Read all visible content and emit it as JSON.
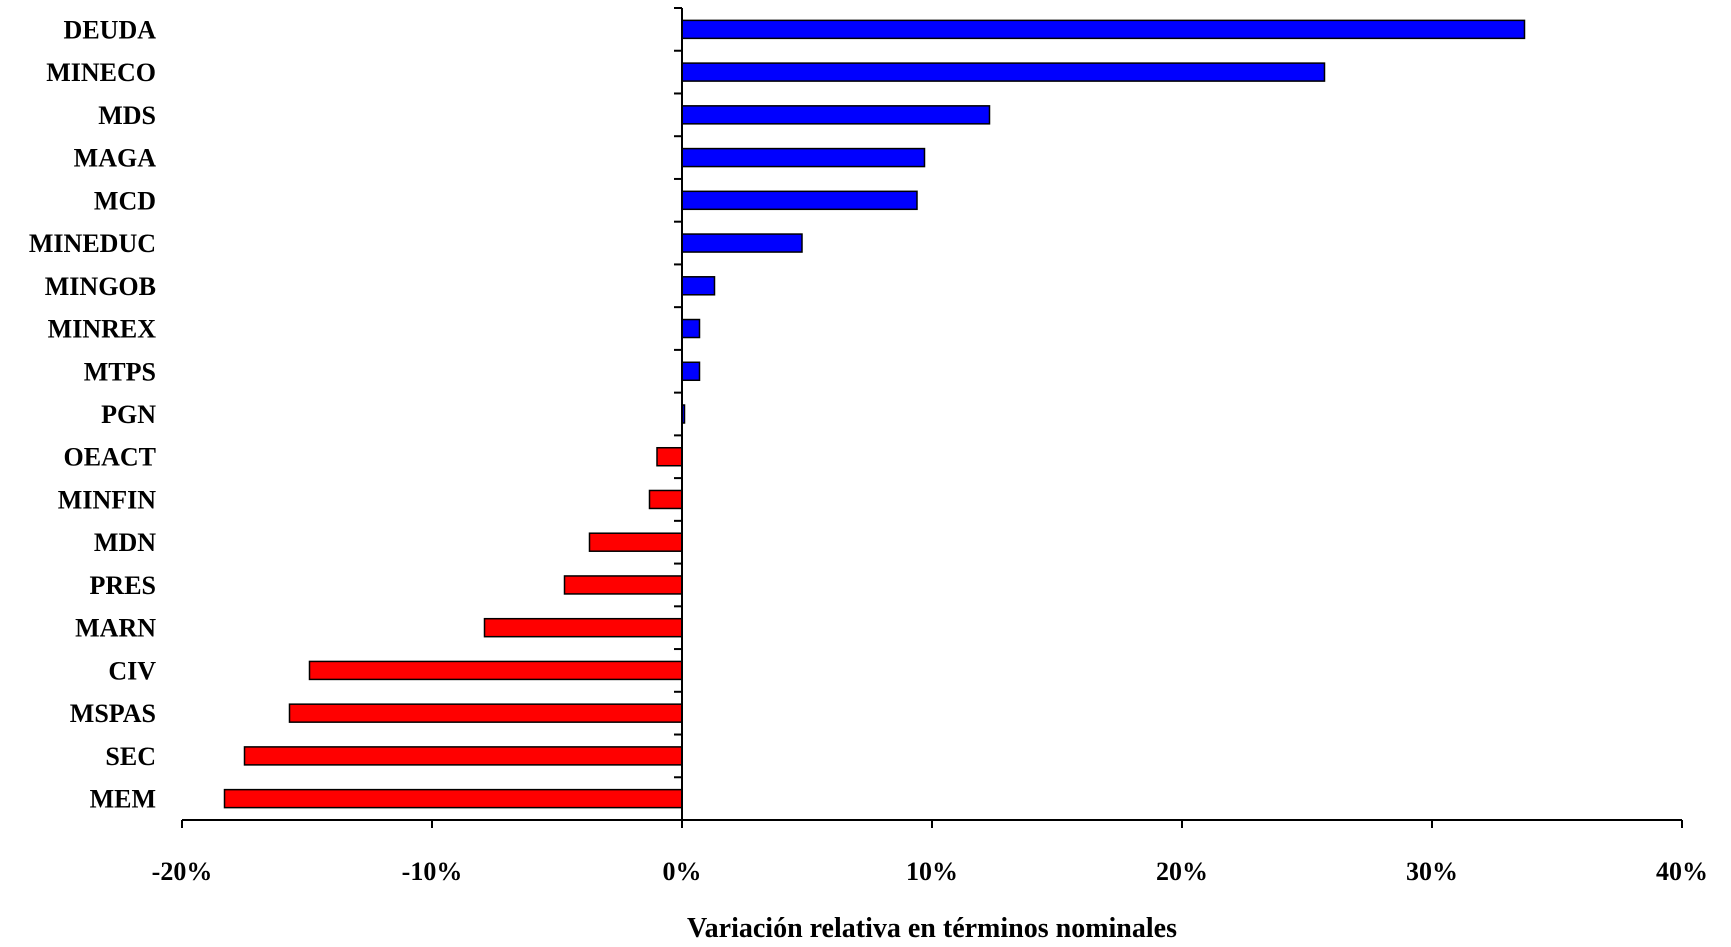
{
  "chart_data": {
    "type": "bar",
    "orientation": "horizontal",
    "categories": [
      "DEUDA",
      "MINECO",
      "MDS",
      "MAGA",
      "MCD",
      "MINEDUC",
      "MINGOB",
      "MINREX",
      "MTPS",
      "PGN",
      "OEACT",
      "MINFIN",
      "MDN",
      "PRES",
      "MARN",
      "CIV",
      "MSPAS",
      "SEC",
      "MEM"
    ],
    "values": [
      33.7,
      25.7,
      12.3,
      9.7,
      9.4,
      4.8,
      1.3,
      0.7,
      0.7,
      0.1,
      -1.0,
      -1.3,
      -3.7,
      -4.7,
      -7.9,
      -14.9,
      -15.7,
      -17.5,
      -18.3
    ],
    "positive_color": "#0000ff",
    "negative_color": "#ff0000",
    "xlim": [
      -20,
      40
    ],
    "xticks": [
      -20,
      -10,
      0,
      10,
      20,
      30,
      40
    ],
    "xtick_labels": [
      "-20%",
      "-10%",
      "0%",
      "10%",
      "20%",
      "30%",
      "40%"
    ],
    "xlabel": "Variación relativa en términos nominales",
    "ylabel": "",
    "title": "",
    "grid": false,
    "legend": false
  }
}
